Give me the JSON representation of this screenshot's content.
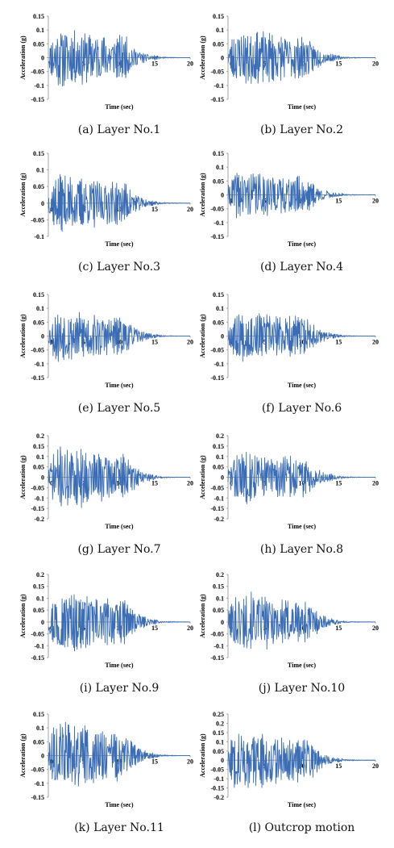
{
  "figure": {
    "line_color": "#3a6db5",
    "axis_color": "#a6a6a6"
  },
  "chart_data": [
    {
      "type": "line",
      "caption": "(a) Layer No.1",
      "xlabel": "Time (sec)",
      "ylabel": "Acceleration (g)",
      "xlim": [
        0,
        20
      ],
      "ylim": [
        -0.15,
        0.15
      ],
      "xticks": [
        0,
        5,
        10,
        15,
        20
      ],
      "yticks": [
        -0.15,
        -0.1,
        -0.05,
        0,
        0.05,
        0.1,
        0.15
      ],
      "yticklabels": [
        "-0.15",
        "-0.1",
        "-0.05",
        "0",
        "0.05",
        "0.1",
        "0.15"
      ],
      "peak": 0.12,
      "seed": 11
    },
    {
      "type": "line",
      "caption": "(b) Layer No.2",
      "xlabel": "Time (sec)",
      "ylabel": "Acceleration (g)",
      "xlim": [
        0,
        20
      ],
      "ylim": [
        -0.15,
        0.15
      ],
      "xticks": [
        0,
        5,
        10,
        15,
        20
      ],
      "yticks": [
        -0.15,
        -0.1,
        -0.05,
        0,
        0.05,
        0.1,
        0.15
      ],
      "yticklabels": [
        "-0.15",
        "-0.1",
        "-0.05",
        "0",
        "0.05",
        "0.1",
        "0.15"
      ],
      "peak": 0.115,
      "seed": 23
    },
    {
      "type": "line",
      "caption": "(c) Layer No.3",
      "xlabel": "Time (sec)",
      "ylabel": "Acceleration (g)",
      "xlim": [
        0,
        20
      ],
      "ylim": [
        -0.1,
        0.15
      ],
      "xticks": [
        0,
        5,
        10,
        15,
        20
      ],
      "yticks": [
        -0.1,
        -0.05,
        0,
        0.05,
        0.1,
        0.15
      ],
      "yticklabels": [
        "-0.1",
        "-0.05",
        "0",
        "0.05",
        "0.1",
        "0.15"
      ],
      "peak": 0.095,
      "seed": 37
    },
    {
      "type": "line",
      "caption": "(d) Layer No.4",
      "xlabel": "Time (sec)",
      "ylabel": "Acceleration (g)",
      "xlim": [
        0,
        20
      ],
      "ylim": [
        -0.15,
        0.15
      ],
      "xticks": [
        0,
        5,
        10,
        15,
        20
      ],
      "yticks": [
        -0.15,
        -0.1,
        -0.05,
        0,
        0.05,
        0.1,
        0.15
      ],
      "yticklabels": [
        "-0.15",
        "-0.1",
        "-0.05",
        "0",
        "0.05",
        "0.1",
        "0.15"
      ],
      "peak": 0.1,
      "seed": 41
    },
    {
      "type": "line",
      "caption": "(e) Layer No.5",
      "xlabel": "Time (sec)",
      "ylabel": "Acceleration (g)",
      "xlim": [
        0,
        20
      ],
      "ylim": [
        -0.15,
        0.15
      ],
      "xticks": [
        0,
        5,
        10,
        15,
        20
      ],
      "yticks": [
        -0.15,
        -0.1,
        -0.05,
        0,
        0.05,
        0.1,
        0.15
      ],
      "yticklabels": [
        "-0.15",
        "-0.1",
        "-0.05",
        "0",
        "0.05",
        "0.1",
        "0.15"
      ],
      "peak": 0.105,
      "seed": 53
    },
    {
      "type": "line",
      "caption": "(f) Layer No.6",
      "xlabel": "Time (sec)",
      "ylabel": "Acceleration (g)",
      "xlim": [
        0,
        20
      ],
      "ylim": [
        -0.15,
        0.15
      ],
      "xticks": [
        0,
        5,
        10,
        15,
        20
      ],
      "yticks": [
        -0.15,
        -0.1,
        -0.05,
        0,
        0.05,
        0.1,
        0.15
      ],
      "yticklabels": [
        "-0.15",
        "-0.1",
        "-0.05",
        "0",
        "0.05",
        "0.1",
        "0.15"
      ],
      "peak": 0.1,
      "seed": 67
    },
    {
      "type": "line",
      "caption": "(g) Layer No.7",
      "xlabel": "Time (sec)",
      "ylabel": "Acceleration (g)",
      "xlim": [
        0,
        20
      ],
      "ylim": [
        -0.2,
        0.2
      ],
      "xticks": [
        0,
        5,
        10,
        15,
        20
      ],
      "yticks": [
        -0.2,
        -0.15,
        -0.1,
        -0.05,
        0,
        0.05,
        0.1,
        0.15,
        0.2
      ],
      "yticklabels": [
        "-0.2",
        "-0.15",
        "-0.1",
        "-0.05",
        "0",
        "0.05",
        "0.1",
        "0.15",
        "0.2"
      ],
      "peak": 0.17,
      "seed": 71
    },
    {
      "type": "line",
      "caption": "(h) Layer No.8",
      "xlabel": "Time (sec)",
      "ylabel": "Acceleration (g)",
      "xlim": [
        0,
        20
      ],
      "ylim": [
        -0.2,
        0.2
      ],
      "xticks": [
        0,
        5,
        10,
        15,
        20
      ],
      "yticks": [
        -0.2,
        -0.15,
        -0.1,
        -0.05,
        0,
        0.05,
        0.1,
        0.15,
        0.2
      ],
      "yticklabels": [
        "-0.2",
        "-0.15",
        "-0.1",
        "-0.05",
        "0",
        "0.05",
        "0.1",
        "0.15",
        "0.2"
      ],
      "peak": 0.145,
      "seed": 83
    },
    {
      "type": "line",
      "caption": "(i) Layer No.9",
      "xlabel": "Time (sec)",
      "ylabel": "Acceleration (g)",
      "xlim": [
        0,
        20
      ],
      "ylim": [
        -0.15,
        0.2
      ],
      "xticks": [
        0,
        5,
        10,
        15,
        20
      ],
      "yticks": [
        -0.15,
        -0.1,
        -0.05,
        0,
        0.05,
        0.1,
        0.15,
        0.2
      ],
      "yticklabels": [
        "-0.15",
        "-0.1",
        "-0.05",
        "0",
        "0.05",
        "0.1",
        "0.15",
        "0.2"
      ],
      "peak": 0.145,
      "seed": 97
    },
    {
      "type": "line",
      "caption": "(j) Layer No.10",
      "xlabel": "Time (sec)",
      "ylabel": "Acceleration (g)",
      "xlim": [
        0,
        20
      ],
      "ylim": [
        -0.15,
        0.2
      ],
      "xticks": [
        0,
        5,
        10,
        15,
        20
      ],
      "yticks": [
        -0.15,
        -0.1,
        -0.05,
        0,
        0.05,
        0.1,
        0.15,
        0.2
      ],
      "yticklabels": [
        "-0.15",
        "-0.1",
        "-0.05",
        "0",
        "0.05",
        "0.1",
        "0.15",
        "0.2"
      ],
      "peak": 0.14,
      "seed": 101
    },
    {
      "type": "line",
      "caption": "(k) Layer No.11",
      "xlabel": "Time (sec)",
      "ylabel": "Acceleration (g)",
      "xlim": [
        0,
        20
      ],
      "ylim": [
        -0.15,
        0.15
      ],
      "xticks": [
        0,
        5,
        10,
        15,
        20
      ],
      "yticks": [
        -0.15,
        -0.1,
        -0.05,
        0,
        0.05,
        0.1,
        0.15
      ],
      "yticklabels": [
        "-0.15",
        "-0.1",
        "-0.05",
        "0",
        "0.05",
        "0.1",
        "0.15"
      ],
      "peak": 0.135,
      "seed": 113
    },
    {
      "type": "line",
      "caption": "(l) Outcrop motion",
      "xlabel": "Time (sec)",
      "ylabel": "Acceleration (g)",
      "xlim": [
        0,
        20
      ],
      "ylim": [
        -0.2,
        0.25
      ],
      "xticks": [
        0,
        5,
        10,
        15,
        20
      ],
      "yticks": [
        -0.2,
        -0.15,
        -0.1,
        -0.05,
        0,
        0.05,
        0.1,
        0.15,
        0.2,
        0.25
      ],
      "yticklabels": [
        "-0.2",
        "-0.15",
        "-0.1",
        "-0.05",
        "0",
        "0.05",
        "0.1",
        "0.15",
        "0.2",
        "0.25"
      ],
      "peak": 0.185,
      "seed": 127
    }
  ]
}
